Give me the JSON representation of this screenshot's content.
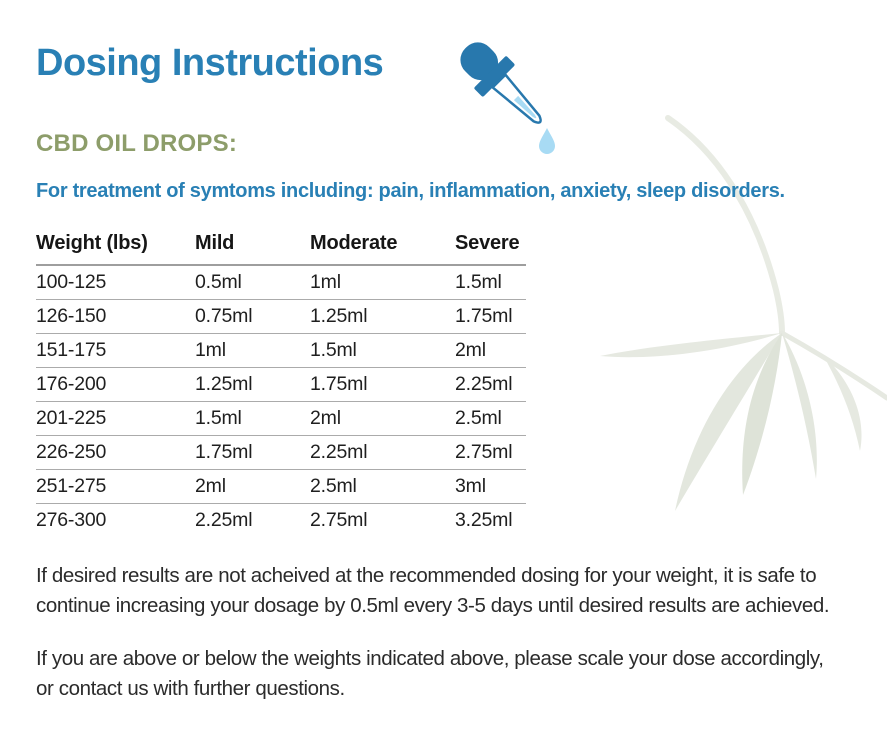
{
  "document": {
    "title": "Dosing Instructions",
    "product_heading": "CBD OIL DROPS:",
    "treatment_line": "For treatment of symtoms including: pain, inflammation, anxiety, sleep disorders.",
    "notes": [
      {
        "lines": [
          "If desired results are not acheived at the recommended dosing for your weight, it is safe to",
          "continue increasing your dosage by 0.5ml every 3-5 days until desired results are achieved."
        ]
      },
      {
        "lines": [
          "If you are above or below the weights indicated above, please scale your dose accordingly,",
          "or contact us with further questions."
        ]
      }
    ]
  },
  "dose_table": {
    "columns": [
      "Weight (lbs)",
      "Mild",
      "Moderate",
      "Severe"
    ],
    "rows": [
      [
        "100-125",
        "0.5ml",
        "1ml",
        "1.5ml"
      ],
      [
        "126-150",
        "0.75ml",
        "1.25ml",
        "1.75ml"
      ],
      [
        "151-175",
        "1ml",
        "1.5ml",
        "2ml"
      ],
      [
        "176-200",
        "1.25ml",
        "1.75ml",
        "2.25ml"
      ],
      [
        "201-225",
        "1.5ml",
        "2ml",
        "2.5ml"
      ],
      [
        "226-250",
        "1.75ml",
        "2.25ml",
        "2.75ml"
      ],
      [
        "251-275",
        "2ml",
        "2.5ml",
        "3ml"
      ],
      [
        "276-300",
        "2.25ml",
        "2.75ml",
        "3.25ml"
      ]
    ]
  },
  "icons": {
    "dropper": "eyedropper with falling drop",
    "leaf": "faint hemp leaf decoration"
  },
  "colors": {
    "title_blue": "#2980b5",
    "olive_green": "#8d9d6a",
    "table_text": "#1f1f1f",
    "leaf_tint": "#e4e8df",
    "drop_light_blue": "#a8dbf4",
    "dropper_blue": "#2878ad"
  }
}
